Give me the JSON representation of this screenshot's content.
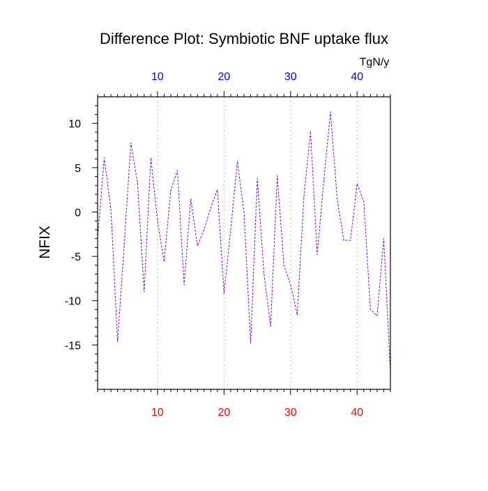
{
  "chart_data": {
    "type": "line",
    "title": "Difference Plot: Symbiotic BNF uptake flux",
    "ylabel": "NFIX",
    "units": "TgN/y",
    "xlim": [
      1,
      45
    ],
    "ylim": [
      -20,
      13
    ],
    "grid": "vertical dotted gridlines at x ticks",
    "x": [
      1,
      2,
      3,
      4,
      5,
      6,
      7,
      8,
      9,
      10,
      11,
      12,
      13,
      14,
      15,
      16,
      17,
      18,
      19,
      20,
      21,
      22,
      23,
      24,
      25,
      26,
      27,
      28,
      29,
      30,
      31,
      32,
      33,
      34,
      35,
      36,
      37,
      38,
      39,
      40,
      41,
      42,
      43,
      44,
      45
    ],
    "series": [
      {
        "values": [
          -3.0,
          6.1,
          0.3,
          -14.6,
          -3.7,
          7.8,
          3.3,
          -9.0,
          6.1,
          -1.0,
          -5.6,
          2.5,
          4.7,
          -8.2,
          1.5,
          -3.8,
          -2.0,
          0.5,
          2.5,
          -9.2,
          -2.0,
          5.7,
          0.0,
          -14.8,
          3.8,
          -7.0,
          -12.9,
          4.1,
          -6.0,
          -8.2,
          -11.6,
          1.7,
          9.1,
          -4.8,
          3.6,
          11.3,
          1.5,
          -3.2,
          -3.2,
          3.2,
          1.2,
          -11.0,
          -11.7,
          -3.0,
          -18.1
        ],
        "color": "#7a00e6",
        "style": "dashed"
      }
    ],
    "bottom_axis": {
      "ticks": [
        10,
        20,
        30,
        40
      ],
      "labels": [
        "10",
        "20",
        "30",
        "40"
      ],
      "color": "#ff0000"
    },
    "top_axis": {
      "ticks": [
        10,
        20,
        30,
        40
      ],
      "labels": [
        "10",
        "20",
        "30",
        "40"
      ],
      "color": "#0000ff"
    },
    "y_axis": {
      "ticks": [
        10,
        5,
        0,
        -5,
        -10,
        -15
      ],
      "labels": [
        "10",
        "5",
        "0",
        "-5",
        "-10",
        "-15"
      ],
      "minor_ticks": [
        12,
        11,
        9,
        8,
        7,
        6,
        4,
        3,
        2,
        1,
        -1,
        -2,
        -3,
        -4,
        -6,
        -7,
        -8,
        -9,
        -11,
        -12,
        -13,
        -14,
        -16,
        -17,
        -18,
        -19
      ]
    }
  }
}
